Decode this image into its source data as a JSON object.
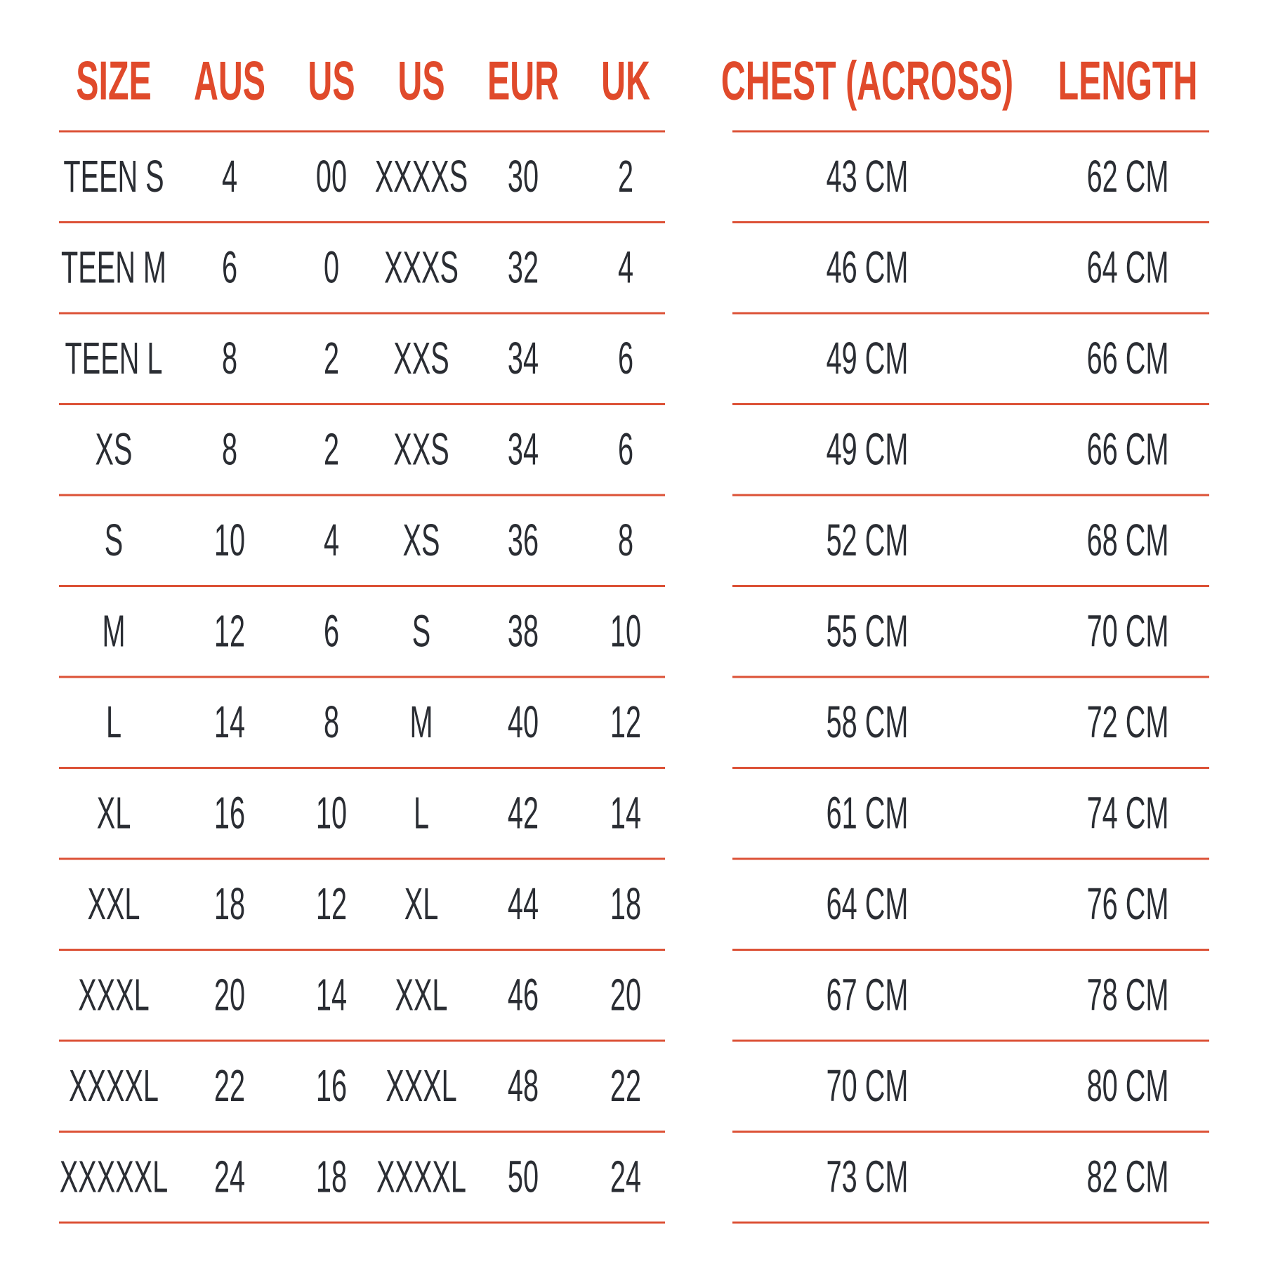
{
  "size_table": {
    "header": [
      "SIZE",
      "AUS",
      "US",
      "US",
      "EUR",
      "UK"
    ],
    "rows": [
      [
        "TEEN S",
        "4",
        "00",
        "XXXXS",
        "30",
        "2"
      ],
      [
        "TEEN M",
        "6",
        "0",
        "XXXS",
        "32",
        "4"
      ],
      [
        "TEEN L",
        "8",
        "2",
        "XXS",
        "34",
        "6"
      ],
      [
        "XS",
        "8",
        "2",
        "XXS",
        "34",
        "6"
      ],
      [
        "S",
        "10",
        "4",
        "XS",
        "36",
        "8"
      ],
      [
        "M",
        "12",
        "6",
        "S",
        "38",
        "10"
      ],
      [
        "L",
        "14",
        "8",
        "M",
        "40",
        "12"
      ],
      [
        "XL",
        "16",
        "10",
        "L",
        "42",
        "14"
      ],
      [
        "XXL",
        "18",
        "12",
        "XL",
        "44",
        "18"
      ],
      [
        "XXXL",
        "20",
        "14",
        "XXL",
        "46",
        "20"
      ],
      [
        "XXXXL",
        "22",
        "16",
        "XXXL",
        "48",
        "22"
      ],
      [
        "XXXXXL",
        "24",
        "18",
        "XXXXL",
        "50",
        "24"
      ]
    ]
  },
  "measure_table": {
    "header": [
      "CHEST (ACROSS)",
      "LENGTH"
    ],
    "rows": [
      [
        "43 CM",
        "62 CM"
      ],
      [
        "46 CM",
        "64 CM"
      ],
      [
        "49 CM",
        "66 CM"
      ],
      [
        "49 CM",
        "66 CM"
      ],
      [
        "52 CM",
        "68 CM"
      ],
      [
        "55 CM",
        "70 CM"
      ],
      [
        "58 CM",
        "72 CM"
      ],
      [
        "61 CM",
        "74 CM"
      ],
      [
        "64 CM",
        "76 CM"
      ],
      [
        "67 CM",
        "78 CM"
      ],
      [
        "70 CM",
        "80 CM"
      ],
      [
        "73 CM",
        "82 CM"
      ]
    ]
  }
}
